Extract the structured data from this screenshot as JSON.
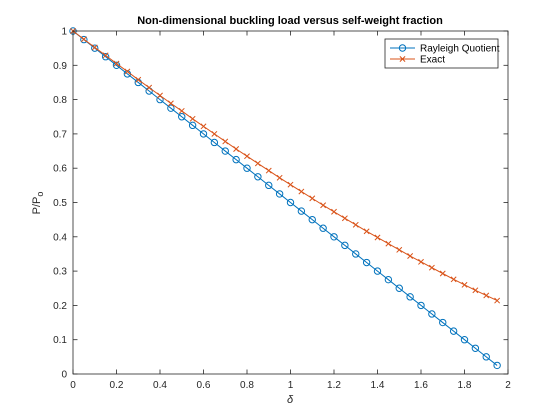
{
  "chart_data": {
    "type": "line",
    "title": "Non-dimensional buckling load versus self-weight fraction",
    "xlabel": "δ",
    "ylabel": "P/P",
    "ylabel_subscript": "o",
    "xlim": [
      0,
      2
    ],
    "ylim": [
      0,
      1
    ],
    "xticks": [
      "0",
      "0.2",
      "0.4",
      "0.6",
      "0.8",
      "1",
      "1.2",
      "1.4",
      "1.6",
      "1.8",
      "2"
    ],
    "yticks": [
      "0",
      "0.1",
      "0.2",
      "0.3",
      "0.4",
      "0.5",
      "0.6",
      "0.7",
      "0.8",
      "0.9",
      "1"
    ],
    "grid": false,
    "legend_position": "top-right",
    "x": [
      0,
      0.05,
      0.1,
      0.15,
      0.2,
      0.25,
      0.3,
      0.35,
      0.4,
      0.45,
      0.5,
      0.55,
      0.6,
      0.65,
      0.7,
      0.75,
      0.8,
      0.85,
      0.9,
      0.95,
      1.0,
      1.05,
      1.1,
      1.15,
      1.2,
      1.25,
      1.3,
      1.35,
      1.4,
      1.45,
      1.5,
      1.55,
      1.6,
      1.65,
      1.7,
      1.75,
      1.8,
      1.85,
      1.9,
      1.95
    ],
    "series": [
      {
        "name": "Rayleigh Quotient",
        "color": "#0072BD",
        "marker": "circle",
        "values": [
          1.0,
          0.975,
          0.95,
          0.925,
          0.9,
          0.875,
          0.85,
          0.825,
          0.8,
          0.775,
          0.75,
          0.725,
          0.7,
          0.675,
          0.65,
          0.625,
          0.6,
          0.575,
          0.55,
          0.525,
          0.5,
          0.475,
          0.45,
          0.425,
          0.4,
          0.375,
          0.35,
          0.325,
          0.3,
          0.275,
          0.25,
          0.225,
          0.2,
          0.175,
          0.15,
          0.125,
          0.1,
          0.075,
          0.05,
          0.025
        ]
      },
      {
        "name": "Exact",
        "color": "#D95319",
        "marker": "x",
        "values": [
          1.0,
          0.976,
          0.952,
          0.929,
          0.905,
          0.882,
          0.858,
          0.835,
          0.812,
          0.789,
          0.767,
          0.744,
          0.722,
          0.7,
          0.678,
          0.656,
          0.635,
          0.614,
          0.593,
          0.572,
          0.552,
          0.532,
          0.512,
          0.492,
          0.473,
          0.454,
          0.435,
          0.416,
          0.398,
          0.38,
          0.362,
          0.344,
          0.327,
          0.31,
          0.293,
          0.276,
          0.26,
          0.244,
          0.229,
          0.214
        ]
      }
    ]
  }
}
